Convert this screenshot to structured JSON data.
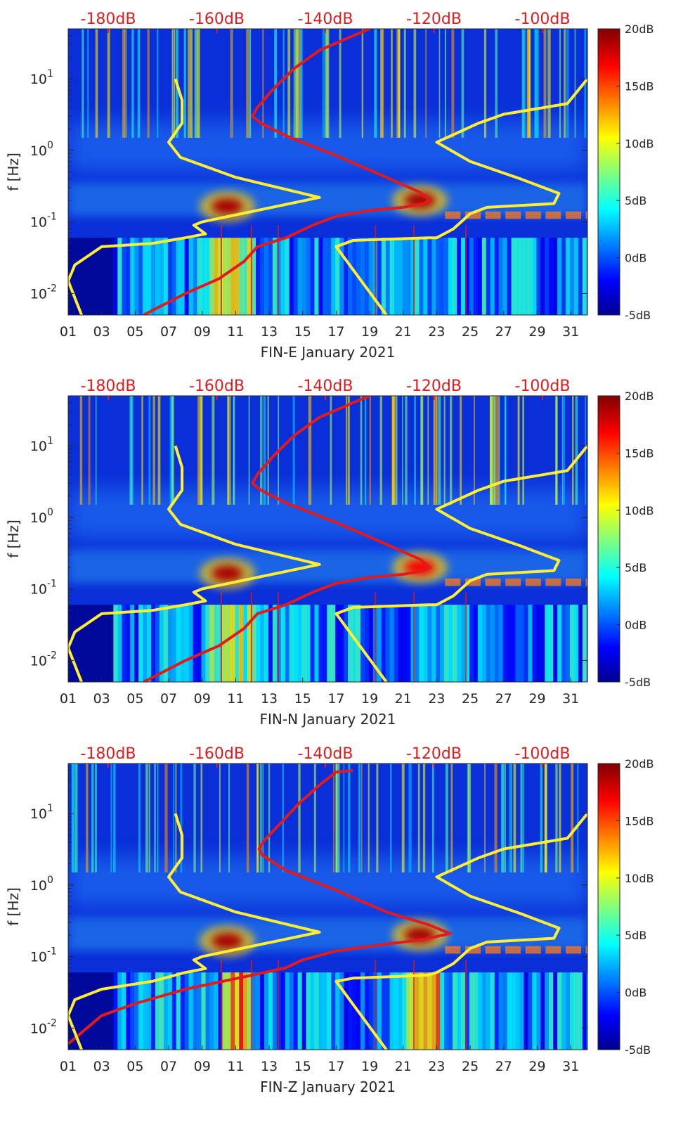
{
  "chart_data": [
    {
      "type": "heatmap",
      "subtype": "log-frequency spectrogram with noise-model overlays",
      "xlabel": "FIN-E January 2021",
      "ylabel": "f [Hz]",
      "x_ticks": [
        "01",
        "03",
        "05",
        "07",
        "09",
        "11",
        "13",
        "15",
        "17",
        "19",
        "21",
        "23",
        "25",
        "27",
        "29",
        "31"
      ],
      "x_range_days": [
        1,
        32
      ],
      "y_ticks": [
        {
          "value": 0.01,
          "base": "10",
          "exp": "-2"
        },
        {
          "value": 0.1,
          "base": "10",
          "exp": "-1"
        },
        {
          "value": 1,
          "base": "10",
          "exp": "0"
        },
        {
          "value": 10,
          "base": "10",
          "exp": "1"
        }
      ],
      "y_range_hz": [
        0.005,
        50
      ],
      "y_scale": "log",
      "top_axis_ticks": [
        "-180dB",
        "-160dB",
        "-140dB",
        "-120dB",
        "-100dB"
      ],
      "top_axis_color": "#e31a1c",
      "colorbar": {
        "ticks": [
          "20dB",
          "15dB",
          "10dB",
          "5dB",
          "0dB",
          "-5dB"
        ],
        "range_db": [
          -5,
          20
        ],
        "colormap": "jet"
      },
      "overlays": [
        {
          "color": "#e31a1c",
          "points": [
            [
              5.5,
              0.005
            ],
            [
              8,
              0.01
            ],
            [
              10,
              0.016
            ],
            [
              11.5,
              0.028
            ],
            [
              12.3,
              0.045
            ],
            [
              14,
              0.06
            ],
            [
              15.6,
              0.09
            ],
            [
              17,
              0.12
            ],
            [
              19,
              0.145
            ],
            [
              21,
              0.16
            ],
            [
              22.2,
              0.18
            ],
            [
              22.6,
              0.2
            ],
            [
              22,
              0.26
            ],
            [
              20,
              0.42
            ],
            [
              17,
              0.85
            ],
            [
              14,
              1.6
            ],
            [
              12.5,
              2.4
            ],
            [
              12,
              3.0
            ],
            [
              12.3,
              4.0
            ],
            [
              13.2,
              7
            ],
            [
              14.5,
              14
            ],
            [
              16,
              25
            ],
            [
              18,
              40
            ],
            [
              19,
              50
            ]
          ]
        },
        {
          "color": "#ffee33",
          "points": [
            [
              1.8,
              0.005
            ],
            [
              1,
              0.015
            ],
            [
              1.4,
              0.025
            ],
            [
              3,
              0.045
            ],
            [
              6,
              0.05
            ],
            [
              8,
              0.06
            ],
            [
              9.2,
              0.068
            ],
            [
              8.5,
              0.09
            ],
            [
              9,
              0.1
            ],
            [
              16,
              0.22
            ],
            [
              11,
              0.42
            ],
            [
              7.7,
              0.8
            ],
            [
              7,
              1.3
            ],
            [
              7.8,
              2.4
            ],
            [
              7.8,
              5
            ],
            [
              7.4,
              10
            ]
          ]
        },
        {
          "color": "#ffee33",
          "points": [
            [
              20,
              0.005
            ],
            [
              17,
              0.045
            ],
            [
              18,
              0.055
            ],
            [
              22.5,
              0.06
            ],
            [
              23,
              0.06
            ],
            [
              24,
              0.08
            ],
            [
              25,
              0.13
            ],
            [
              26,
              0.16
            ],
            [
              30,
              0.18
            ],
            [
              30.3,
              0.25
            ],
            [
              28,
              0.4
            ],
            [
              25,
              0.7
            ],
            [
              23,
              1.3
            ],
            [
              25.5,
              2.4
            ],
            [
              27,
              3.2
            ],
            [
              30.8,
              4.5
            ],
            [
              32,
              10
            ]
          ]
        }
      ],
      "hotspots": [
        {
          "day": 10.5,
          "f": 0.165,
          "db": 19
        },
        {
          "day": 22.0,
          "f": 0.2,
          "db": 19
        }
      ]
    },
    {
      "type": "heatmap",
      "subtype": "log-frequency spectrogram with noise-model overlays",
      "xlabel": "FIN-N January 2021",
      "ylabel": "f [Hz]",
      "x_ticks": [
        "01",
        "03",
        "05",
        "07",
        "09",
        "11",
        "13",
        "15",
        "17",
        "19",
        "21",
        "23",
        "25",
        "27",
        "29",
        "31"
      ],
      "x_range_days": [
        1,
        32
      ],
      "y_ticks": [
        {
          "value": 0.01,
          "base": "10",
          "exp": "-2"
        },
        {
          "value": 0.1,
          "base": "10",
          "exp": "-1"
        },
        {
          "value": 1,
          "base": "10",
          "exp": "0"
        },
        {
          "value": 10,
          "base": "10",
          "exp": "1"
        }
      ],
      "y_range_hz": [
        0.005,
        50
      ],
      "y_scale": "log",
      "top_axis_ticks": [
        "-180dB",
        "-160dB",
        "-140dB",
        "-120dB",
        "-100dB"
      ],
      "top_axis_color": "#e31a1c",
      "colorbar": {
        "ticks": [
          "20dB",
          "15dB",
          "10dB",
          "5dB",
          "0dB",
          "-5dB"
        ],
        "range_db": [
          -5,
          20
        ],
        "colormap": "jet"
      },
      "overlays": [
        {
          "color": "#e31a1c",
          "points": [
            [
              5.5,
              0.005
            ],
            [
              8,
              0.01
            ],
            [
              10,
              0.016
            ],
            [
              11.5,
              0.028
            ],
            [
              12.3,
              0.045
            ],
            [
              14,
              0.06
            ],
            [
              15.6,
              0.09
            ],
            [
              17,
              0.12
            ],
            [
              19,
              0.145
            ],
            [
              21,
              0.16
            ],
            [
              22.2,
              0.18
            ],
            [
              22.6,
              0.2
            ],
            [
              22,
              0.26
            ],
            [
              20,
              0.42
            ],
            [
              17,
              0.85
            ],
            [
              14,
              1.6
            ],
            [
              12.5,
              2.4
            ],
            [
              12,
              3.0
            ],
            [
              12.3,
              4.0
            ],
            [
              13.2,
              7
            ],
            [
              14.5,
              14
            ],
            [
              16,
              25
            ],
            [
              18,
              40
            ],
            [
              19,
              50
            ]
          ]
        },
        {
          "color": "#ffee33",
          "points": [
            [
              1.8,
              0.005
            ],
            [
              1,
              0.015
            ],
            [
              1.4,
              0.025
            ],
            [
              3,
              0.045
            ],
            [
              6,
              0.05
            ],
            [
              8,
              0.06
            ],
            [
              9.2,
              0.068
            ],
            [
              8.5,
              0.09
            ],
            [
              9,
              0.1
            ],
            [
              16,
              0.22
            ],
            [
              11,
              0.42
            ],
            [
              7.7,
              0.8
            ],
            [
              7,
              1.3
            ],
            [
              7.8,
              2.4
            ],
            [
              7.8,
              5
            ],
            [
              7.4,
              10
            ]
          ]
        },
        {
          "color": "#ffee33",
          "points": [
            [
              20,
              0.005
            ],
            [
              17,
              0.045
            ],
            [
              18,
              0.055
            ],
            [
              22.5,
              0.06
            ],
            [
              23,
              0.06
            ],
            [
              24,
              0.08
            ],
            [
              25,
              0.13
            ],
            [
              26,
              0.16
            ],
            [
              30,
              0.18
            ],
            [
              30.3,
              0.25
            ],
            [
              28,
              0.4
            ],
            [
              25,
              0.7
            ],
            [
              23,
              1.3
            ],
            [
              25.5,
              2.4
            ],
            [
              27,
              3.2
            ],
            [
              30.8,
              4.5
            ],
            [
              32,
              10
            ]
          ]
        }
      ],
      "hotspots": [
        {
          "day": 10.5,
          "f": 0.165,
          "db": 19
        },
        {
          "day": 22.0,
          "f": 0.2,
          "db": 17
        }
      ]
    },
    {
      "type": "heatmap",
      "subtype": "log-frequency spectrogram with noise-model overlays",
      "xlabel": "FIN-Z January 2021",
      "ylabel": "f [Hz]",
      "x_ticks": [
        "01",
        "03",
        "05",
        "07",
        "09",
        "11",
        "13",
        "15",
        "17",
        "19",
        "21",
        "23",
        "25",
        "27",
        "29",
        "31"
      ],
      "x_range_days": [
        1,
        32
      ],
      "y_ticks": [
        {
          "value": 0.01,
          "base": "10",
          "exp": "-2"
        },
        {
          "value": 0.1,
          "base": "10",
          "exp": "-1"
        },
        {
          "value": 1,
          "base": "10",
          "exp": "0"
        },
        {
          "value": 10,
          "base": "10",
          "exp": "1"
        }
      ],
      "y_range_hz": [
        0.005,
        50
      ],
      "y_scale": "log",
      "top_axis_ticks": [
        "-180dB",
        "-160dB",
        "-140dB",
        "-120dB",
        "-100dB"
      ],
      "top_axis_color": "#e31a1c",
      "colorbar": {
        "ticks": [
          "20dB",
          "15dB",
          "10dB",
          "5dB",
          "0dB",
          "-5dB"
        ],
        "range_db": [
          -5,
          20
        ],
        "colormap": "jet"
      },
      "overlays": [
        {
          "color": "#e31a1c",
          "points": [
            [
              1,
              0.006
            ],
            [
              3,
              0.015
            ],
            [
              5,
              0.022
            ],
            [
              8,
              0.035
            ],
            [
              12,
              0.055
            ],
            [
              14,
              0.07
            ],
            [
              15,
              0.09
            ],
            [
              17,
              0.12
            ],
            [
              20,
              0.15
            ],
            [
              22,
              0.17
            ],
            [
              23.8,
              0.21
            ],
            [
              22.5,
              0.28
            ],
            [
              20,
              0.42
            ],
            [
              17,
              0.85
            ],
            [
              14,
              1.6
            ],
            [
              12.6,
              2.6
            ],
            [
              12.4,
              3.2
            ],
            [
              12.7,
              4.2
            ],
            [
              13.6,
              7
            ],
            [
              14.8,
              14
            ],
            [
              16,
              25
            ],
            [
              17,
              38
            ],
            [
              18,
              40
            ]
          ]
        },
        {
          "color": "#ffee33",
          "points": [
            [
              1.8,
              0.005
            ],
            [
              1,
              0.015
            ],
            [
              1.4,
              0.025
            ],
            [
              3,
              0.035
            ],
            [
              6,
              0.045
            ],
            [
              8,
              0.06
            ],
            [
              9.2,
              0.068
            ],
            [
              8.5,
              0.09
            ],
            [
              9,
              0.1
            ],
            [
              16,
              0.22
            ],
            [
              11,
              0.42
            ],
            [
              7.7,
              0.8
            ],
            [
              7,
              1.3
            ],
            [
              7.8,
              2.4
            ],
            [
              7.8,
              5
            ],
            [
              7.4,
              10
            ]
          ]
        },
        {
          "color": "#ffee33",
          "points": [
            [
              20,
              0.005
            ],
            [
              17,
              0.045
            ],
            [
              18,
              0.05
            ],
            [
              22.5,
              0.055
            ],
            [
              23,
              0.06
            ],
            [
              24,
              0.08
            ],
            [
              25,
              0.13
            ],
            [
              26,
              0.16
            ],
            [
              30,
              0.18
            ],
            [
              30.3,
              0.25
            ],
            [
              28,
              0.4
            ],
            [
              25,
              0.7
            ],
            [
              23,
              1.3
            ],
            [
              25.5,
              2.4
            ],
            [
              27,
              3.2
            ],
            [
              30.8,
              4.5
            ],
            [
              32,
              10
            ]
          ]
        }
      ],
      "hotspots": [
        {
          "day": 10.5,
          "f": 0.165,
          "db": 19
        },
        {
          "day": 22.0,
          "f": 0.2,
          "db": 19
        }
      ]
    }
  ]
}
